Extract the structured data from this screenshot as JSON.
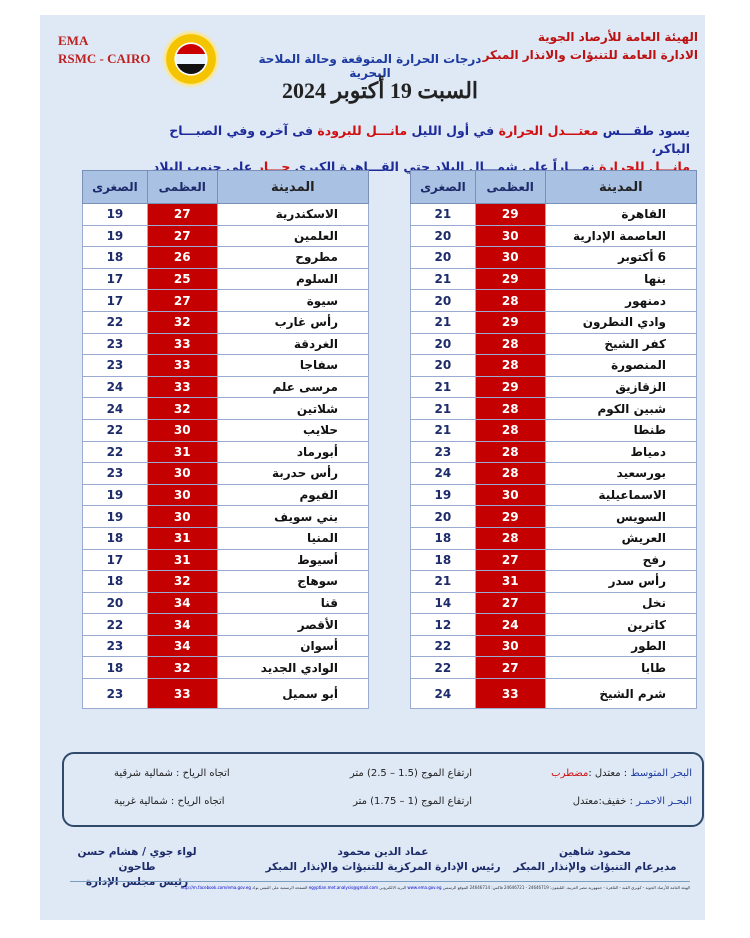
{
  "header": {
    "ema": "EMA",
    "rsmc": "RSMC - CAIRO",
    "org_line1": "الهيئة العامة للأرصاد الجوية",
    "org_line2": "الادارة العامة للتنبؤات والانذار المبكر",
    "subtitle": "درجات الحرارة المتوقعة وحالة الملاحة البحرية",
    "date": "السبت  19  أكتوبر 2024"
  },
  "forecast": {
    "p1": "يسود طقـــس ",
    "p2": "معتـــدل الحرارة",
    "p3": " في أول الليل ",
    "p4": "مانـــل للبرودة",
    "p5": " فى آخره وفي الصبـــاح الباكر،",
    "p6": "مانـــل للحرارة",
    "p7": " نهـــاراً على شمـــال البلاد حتي القـــاهرة الكبري ",
    "p8": "حـــار",
    "p9": " على جنوب البلاد ."
  },
  "columns": {
    "city": "المدينة",
    "max": "العظمى",
    "min": "الصغرى"
  },
  "table_right": [
    [
      "القاهرة",
      "29",
      "21"
    ],
    [
      "العاصمة الإدارية",
      "30",
      "20"
    ],
    [
      "6 أكتوبر",
      "30",
      "20"
    ],
    [
      "بنها",
      "29",
      "21"
    ],
    [
      "دمنهور",
      "28",
      "20"
    ],
    [
      "وادي النطرون",
      "29",
      "21"
    ],
    [
      "كفر الشيخ",
      "28",
      "20"
    ],
    [
      "المنصورة",
      "28",
      "20"
    ],
    [
      "الزقازيق",
      "29",
      "21"
    ],
    [
      "شبين الكوم",
      "28",
      "21"
    ],
    [
      "طنطا",
      "28",
      "21"
    ],
    [
      "دمياط",
      "28",
      "23"
    ],
    [
      "بورسعيد",
      "28",
      "24"
    ],
    [
      "الاسماعيلية",
      "30",
      "19"
    ],
    [
      "السويس",
      "29",
      "20"
    ],
    [
      "العريش",
      "28",
      "18"
    ],
    [
      "رفح",
      "27",
      "18"
    ],
    [
      "رأس سدر",
      "31",
      "21"
    ],
    [
      "نخل",
      "27",
      "14"
    ],
    [
      "كاترين",
      "24",
      "12"
    ],
    [
      "الطور",
      "30",
      "22"
    ],
    [
      "طابا",
      "27",
      "22"
    ],
    [
      "شرم الشيخ",
      "33",
      "24"
    ]
  ],
  "table_left": [
    [
      "الاسكندرية",
      "27",
      "19"
    ],
    [
      "العلمين",
      "27",
      "19"
    ],
    [
      "مطروح",
      "26",
      "18"
    ],
    [
      "السلوم",
      "25",
      "17"
    ],
    [
      "سيوة",
      "27",
      "17"
    ],
    [
      "رأس غارب",
      "32",
      "22"
    ],
    [
      "الغردقة",
      "33",
      "23"
    ],
    [
      "سفاجا",
      "33",
      "23"
    ],
    [
      "مرسى علم",
      "33",
      "24"
    ],
    [
      "شلاتين",
      "32",
      "24"
    ],
    [
      "حلايب",
      "30",
      "22"
    ],
    [
      "أبورماد",
      "31",
      "22"
    ],
    [
      "رأس حدربة",
      "30",
      "23"
    ],
    [
      "الفيوم",
      "30",
      "19"
    ],
    [
      "بني سويف",
      "30",
      "19"
    ],
    [
      "المنيا",
      "31",
      "18"
    ],
    [
      "أسيوط",
      "31",
      "17"
    ],
    [
      "سوهاج",
      "32",
      "18"
    ],
    [
      "قنا",
      "34",
      "20"
    ],
    [
      "الأقصر",
      "34",
      "22"
    ],
    [
      "أسوان",
      "34",
      "23"
    ],
    [
      "الوادي الجديد",
      "32",
      "18"
    ],
    [
      "أبو سميل",
      "33",
      "23"
    ]
  ],
  "sea": {
    "med_label": "البحر المتوسط",
    "med_state": " : معتدل :",
    "med_state_red": "مضطرب",
    "med_wave": "ارتفاع الموج (1.5 – 2.5) متر",
    "med_wind": "اتجاه الرياح : شمالية شرقية",
    "red_label": "البحـر الاحمـر",
    "red_state": " : خفيف:معتدل",
    "red_wave": "ارتفاع الموج (1 – 1.75) متر",
    "red_wind": "اتجاه الرياح : شمالية غربية"
  },
  "signatures": [
    {
      "name": "محمود شاهين",
      "title": "مديرعام التنبؤات والإنذار المبكر"
    },
    {
      "name": "عماد الدين محمود",
      "title": "رئيس الإدارة المركزية للتنبؤات والإنذار المبكر"
    },
    {
      "name": "لواء جوي / هشام حسن طاحون",
      "title": "رئيس مجلس الإدارة"
    }
  ],
  "footer": {
    "text": "الهيئة العامة للأرصاد الجوية - كوبري القبة - القاهرة - جمهورية مصر العربية. التليفون: 24646719 - 24646721 فاكس: 24646714 الموقع الرسمي",
    "site": "www.ema.gov.eg",
    "email_label": "البريد الالكتروني",
    "email": "egyptian.met.analysis@gmail.com",
    "fb_label": "الصفحة الرسمية على الفيس بوك",
    "fb": "http://m.facebook.com/ema.gov.eg"
  },
  "colors": {
    "max_cell": "#c40000",
    "header_cell": "#a9c1e2",
    "background": "#dfe9f5"
  }
}
